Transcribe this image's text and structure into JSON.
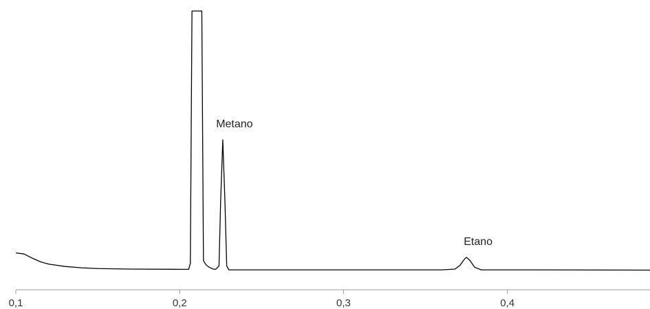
{
  "chart_data": {
    "type": "line",
    "title": "",
    "xlabel": "",
    "ylabel": "",
    "xlim": [
      0.1,
      0.487
    ],
    "ylim": [
      0,
      1
    ],
    "grid": false,
    "x_ticks": [
      {
        "value": 0.1,
        "label": "0,1"
      },
      {
        "value": 0.2,
        "label": "0,2"
      },
      {
        "value": 0.3,
        "label": "0,3"
      },
      {
        "value": 0.4,
        "label": "0,4"
      }
    ],
    "series": [
      {
        "color": "#000000",
        "points": [
          [
            0.1,
            0.07
          ],
          [
            0.105,
            0.066
          ],
          [
            0.11,
            0.05
          ],
          [
            0.115,
            0.036
          ],
          [
            0.12,
            0.027
          ],
          [
            0.13,
            0.018
          ],
          [
            0.14,
            0.013
          ],
          [
            0.15,
            0.01
          ],
          [
            0.17,
            0.008
          ],
          [
            0.2,
            0.007
          ],
          [
            0.2055,
            0.007
          ],
          [
            0.2065,
            0.03
          ],
          [
            0.2075,
            1.0
          ],
          [
            0.2135,
            1.0
          ],
          [
            0.2145,
            0.04
          ],
          [
            0.216,
            0.025
          ],
          [
            0.2175,
            0.017
          ],
          [
            0.219,
            0.012
          ],
          [
            0.2205,
            0.008
          ],
          [
            0.222,
            0.007
          ],
          [
            0.224,
            0.02
          ],
          [
            0.225,
            0.27
          ],
          [
            0.2263,
            0.505
          ],
          [
            0.2276,
            0.27
          ],
          [
            0.2287,
            0.02
          ],
          [
            0.23,
            0.005
          ],
          [
            0.25,
            0.005
          ],
          [
            0.3,
            0.005
          ],
          [
            0.36,
            0.005
          ],
          [
            0.368,
            0.008
          ],
          [
            0.371,
            0.022
          ],
          [
            0.374,
            0.048
          ],
          [
            0.375,
            0.053
          ],
          [
            0.377,
            0.042
          ],
          [
            0.38,
            0.015
          ],
          [
            0.384,
            0.005
          ],
          [
            0.42,
            0.005
          ],
          [
            0.487,
            0.004
          ]
        ]
      }
    ],
    "annotations": [
      {
        "text": "Metano",
        "x": 0.2263,
        "y": 0.505
      },
      {
        "text": "Etano",
        "x": 0.375,
        "y": 0.053
      }
    ]
  }
}
